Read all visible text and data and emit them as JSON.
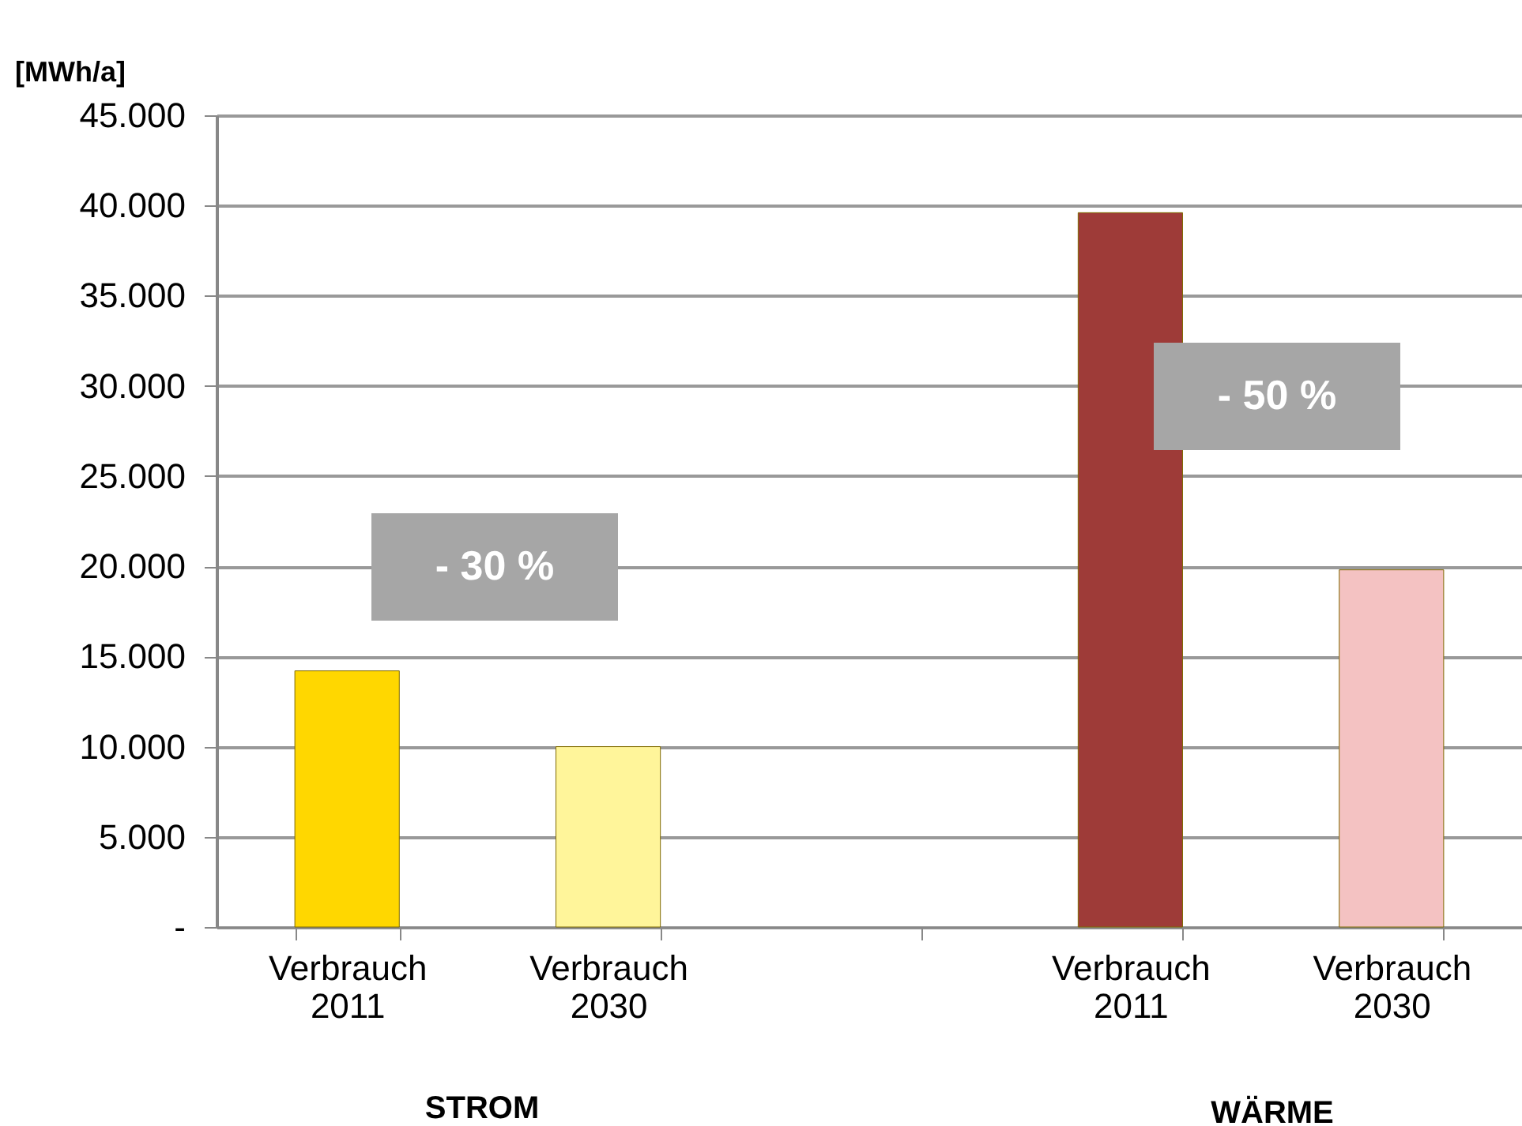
{
  "chart_data": {
    "type": "bar",
    "ylabel": "[MWh/a]",
    "categories": [
      "Verbrauch 2011",
      "Verbrauch 2030",
      null,
      "Verbrauch 2011",
      "Verbrauch 2030"
    ],
    "values": [
      14200,
      10000,
      null,
      39600,
      19800
    ],
    "colors": [
      "#ffd700",
      "#fff59a",
      "#ffffff",
      "#9e3b38",
      "#f4c2c2"
    ],
    "ylim": [
      0,
      45000
    ],
    "yticks": [
      {
        "value": 0,
        "label": "-"
      },
      {
        "value": 5000,
        "label": "5.000"
      },
      {
        "value": 10000,
        "label": "10.000"
      },
      {
        "value": 15000,
        "label": "15.000"
      },
      {
        "value": 20000,
        "label": "20.000"
      },
      {
        "value": 25000,
        "label": "25.000"
      },
      {
        "value": 30000,
        "label": "30.000"
      },
      {
        "value": 35000,
        "label": "35.000"
      },
      {
        "value": 40000,
        "label": "40.000"
      },
      {
        "value": 45000,
        "label": "45.000"
      }
    ],
    "grid": "y",
    "annotations": [
      "- 30 %",
      "- 50 %",
      "STROM",
      "WÄRME"
    ]
  }
}
